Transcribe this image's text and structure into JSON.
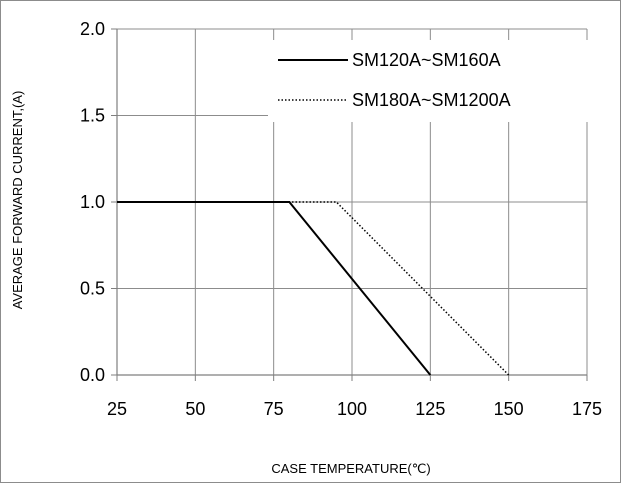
{
  "chart_data": {
    "type": "line",
    "title": "",
    "xlabel": "CASE  TEMPERATURE(℃)",
    "ylabel": "AVERAGE FORWARD CURRENT,(A)",
    "xlim": [
      25,
      175
    ],
    "ylim": [
      0,
      2.0
    ],
    "x_ticks": [
      25,
      50,
      75,
      100,
      125,
      150,
      175
    ],
    "x_tick_labels": [
      "25",
      "50",
      "75",
      "100",
      "125",
      "150",
      "175"
    ],
    "y_ticks": [
      0,
      0.5,
      1.0,
      1.5,
      2.0
    ],
    "y_tick_labels": [
      "0.0",
      "0.5",
      "1.0",
      "1.5",
      "2.0"
    ],
    "grid": true,
    "legend_position": "top-right",
    "series": [
      {
        "name": "SM120A~SM160A",
        "style": "solid",
        "color": "#000000",
        "x": [
          25,
          80,
          125
        ],
        "y": [
          1.0,
          1.0,
          0.0
        ]
      },
      {
        "name": "SM180A~SM1200A",
        "style": "dotted",
        "color": "#000000",
        "x": [
          25,
          95,
          150
        ],
        "y": [
          1.0,
          1.0,
          0.0
        ]
      }
    ]
  }
}
